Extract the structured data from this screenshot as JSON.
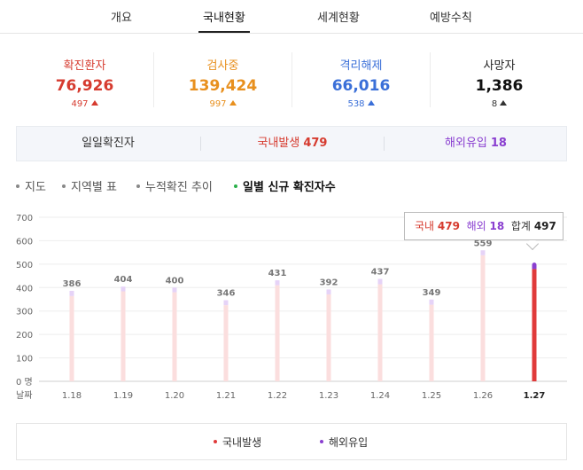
{
  "tabs": [
    {
      "label": "개요"
    },
    {
      "label": "국내현황"
    },
    {
      "label": "세계현황"
    },
    {
      "label": "예방수칙"
    }
  ],
  "stats": [
    {
      "label": "확진환자",
      "value": "76,926",
      "delta": "497",
      "color": "#d63b2f"
    },
    {
      "label": "검사중",
      "value": "139,424",
      "delta": "997",
      "color": "#e8901e"
    },
    {
      "label": "격리해제",
      "value": "66,016",
      "delta": "538",
      "color": "#3a6fd8"
    },
    {
      "label": "사망자",
      "value": "1,386",
      "delta": "8",
      "color": "#222222"
    }
  ],
  "daily": {
    "label": "일일확진자",
    "domestic_label": "국내발생",
    "domestic_value": "479",
    "overseas_label": "해외유입",
    "overseas_value": "18"
  },
  "views": [
    {
      "label": "지도"
    },
    {
      "label": "지역별 표"
    },
    {
      "label": "누적확진 추이"
    },
    {
      "label": "일별 신규 확진자수"
    }
  ],
  "tooltip": {
    "domestic_label": "국내",
    "domestic_value": "479",
    "overseas_label": "해외",
    "overseas_value": "18",
    "total_label": "합계",
    "total_value": "497"
  },
  "legend": {
    "domestic": "국내발생",
    "overseas": "해외유입"
  },
  "colors": {
    "domestic": "#e03a3a",
    "domestic_faded": "#fbdede",
    "overseas": "#8a3fd0",
    "overseas_faded": "#e6d3f7"
  },
  "chart_data": {
    "type": "bar",
    "stacked": true,
    "categories": [
      "1.18",
      "1.19",
      "1.20",
      "1.21",
      "1.22",
      "1.23",
      "1.24",
      "1.25",
      "1.26",
      "1.27"
    ],
    "series": [
      {
        "name": "국내발생",
        "values": [
          364,
          384,
          380,
          325,
          410,
          371,
          414,
          327,
          538,
          479
        ]
      },
      {
        "name": "해외유입",
        "values": [
          22,
          20,
          20,
          21,
          21,
          21,
          23,
          22,
          21,
          18
        ]
      }
    ],
    "totals": [
      386,
      404,
      400,
      346,
      431,
      392,
      437,
      349,
      559,
      null
    ],
    "xlabel": "날짜",
    "yticks": [
      "0 명",
      "100",
      "200",
      "300",
      "400",
      "500",
      "600",
      "700"
    ],
    "ylim": [
      0,
      700
    ],
    "grid": true,
    "highlight_category": "1.27"
  }
}
